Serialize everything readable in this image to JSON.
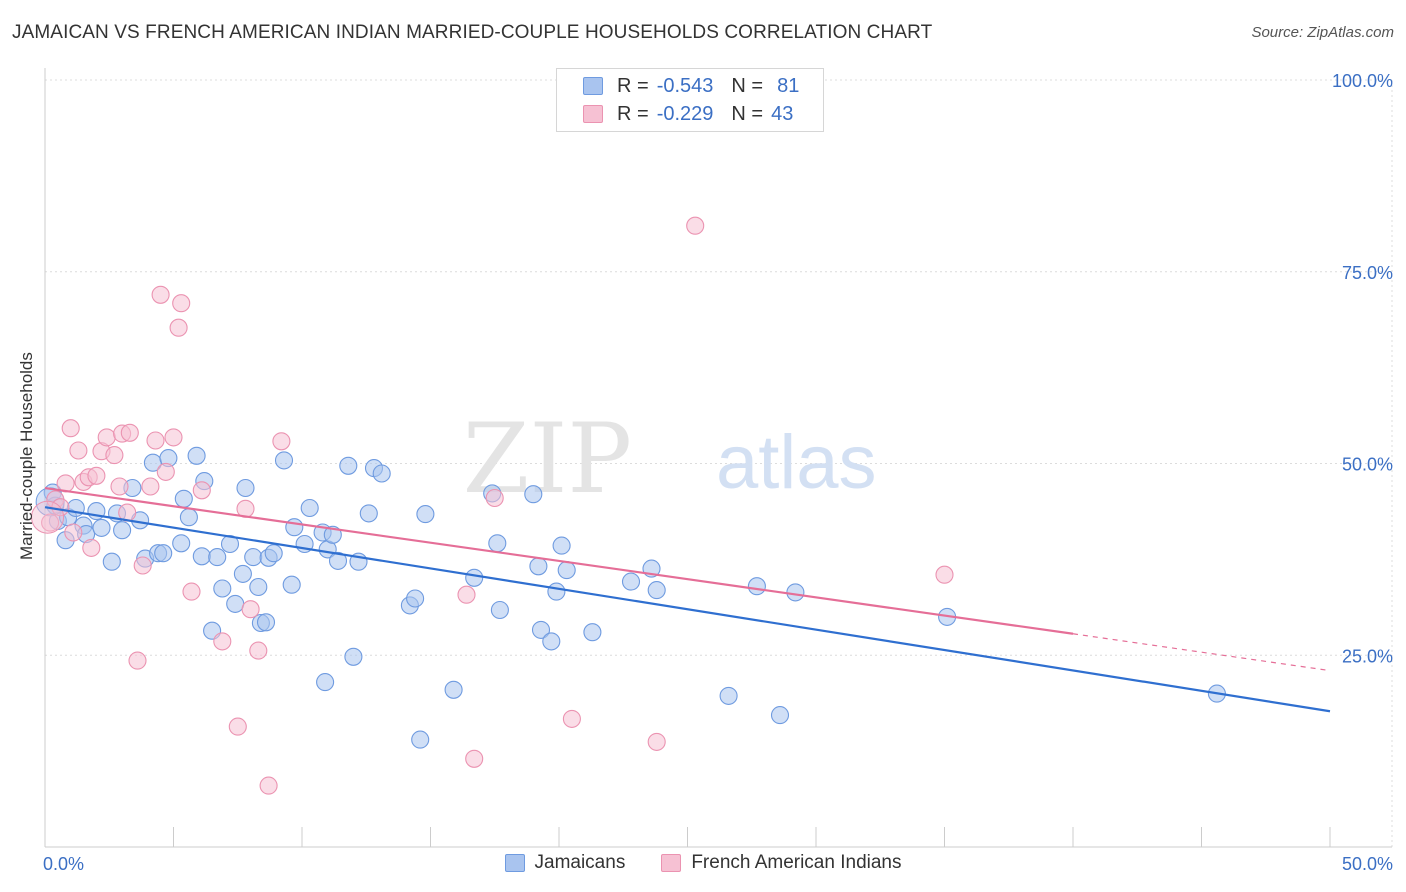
{
  "title": "JAMAICAN VS FRENCH AMERICAN INDIAN MARRIED-COUPLE HOUSEHOLDS CORRELATION CHART",
  "source": "Source: ZipAtlas.com",
  "watermark": {
    "zip": "ZIP",
    "atlas": "atlas"
  },
  "legend": {
    "r_label": "R =",
    "n_label": "N =",
    "rows": [
      {
        "r": "-0.543",
        "n": "81",
        "color": "#a9c4ef",
        "border": "#6f9be0"
      },
      {
        "r": "-0.229",
        "n": "43",
        "color": "#f6c1d3",
        "border": "#eb93b1"
      }
    ]
  },
  "chart_data": {
    "type": "scatter",
    "title": "JAMAICAN VS FRENCH AMERICAN INDIAN MARRIED-COUPLE HOUSEHOLDS CORRELATION CHART",
    "xlabel": "",
    "ylabel": "Married-couple Households",
    "xlim": [
      0,
      50
    ],
    "ylim": [
      0,
      102
    ],
    "x_tick_labels": [
      "0.0%",
      "50.0%"
    ],
    "y_tick_labels": [
      "25.0%",
      "50.0%",
      "75.0%",
      "100.0%"
    ],
    "y_ticks": [
      25,
      50,
      75,
      100
    ],
    "grid": true,
    "legend_position": "bottom",
    "series": [
      {
        "name": "Jamaicans",
        "color": "#a9c4ef",
        "line_color": "#2f6fd0",
        "r": -0.543,
        "n": 81,
        "trend": {
          "x0": 0,
          "y0": 44.3,
          "x1": 50,
          "y1": 17.7
        },
        "points": [
          [
            0.3,
            46.2
          ],
          [
            0.4,
            44.5
          ],
          [
            0.5,
            42.5
          ],
          [
            0.8,
            40.0
          ],
          [
            0.9,
            43.0
          ],
          [
            1.2,
            44.2
          ],
          [
            1.5,
            41.9
          ],
          [
            1.6,
            40.8
          ],
          [
            2.0,
            43.8
          ],
          [
            2.2,
            41.6
          ],
          [
            2.6,
            37.2
          ],
          [
            2.8,
            43.5
          ],
          [
            3.0,
            41.3
          ],
          [
            3.4,
            46.8
          ],
          [
            3.7,
            42.6
          ],
          [
            3.9,
            37.6
          ],
          [
            4.2,
            50.1
          ],
          [
            4.4,
            38.3
          ],
          [
            4.6,
            38.3
          ],
          [
            4.8,
            50.7
          ],
          [
            5.3,
            39.6
          ],
          [
            5.4,
            45.4
          ],
          [
            5.6,
            43.0
          ],
          [
            5.9,
            51.0
          ],
          [
            6.1,
            37.9
          ],
          [
            6.2,
            47.7
          ],
          [
            6.5,
            28.2
          ],
          [
            6.7,
            37.8
          ],
          [
            6.9,
            33.7
          ],
          [
            7.2,
            39.5
          ],
          [
            7.4,
            31.7
          ],
          [
            7.7,
            35.6
          ],
          [
            7.8,
            46.8
          ],
          [
            8.1,
            37.8
          ],
          [
            8.4,
            29.2
          ],
          [
            8.6,
            29.3
          ],
          [
            8.7,
            37.7
          ],
          [
            8.9,
            38.3
          ],
          [
            9.3,
            50.4
          ],
          [
            9.6,
            34.2
          ],
          [
            9.7,
            41.7
          ],
          [
            10.1,
            39.5
          ],
          [
            10.3,
            44.2
          ],
          [
            10.8,
            41.0
          ],
          [
            11.0,
            38.8
          ],
          [
            11.2,
            40.7
          ],
          [
            11.4,
            37.3
          ],
          [
            11.8,
            49.7
          ],
          [
            12.2,
            37.2
          ],
          [
            12.6,
            43.5
          ],
          [
            12.8,
            49.4
          ],
          [
            13.1,
            48.7
          ],
          [
            14.2,
            31.5
          ],
          [
            14.4,
            32.4
          ],
          [
            14.6,
            14.0
          ],
          [
            14.8,
            43.4
          ],
          [
            15.9,
            20.5
          ],
          [
            16.7,
            35.1
          ],
          [
            17.4,
            46.1
          ],
          [
            17.6,
            39.6
          ],
          [
            17.7,
            30.9
          ],
          [
            19.0,
            46.0
          ],
          [
            19.2,
            36.6
          ],
          [
            19.3,
            28.3
          ],
          [
            19.7,
            26.8
          ],
          [
            19.9,
            33.3
          ],
          [
            20.1,
            39.3
          ],
          [
            20.3,
            36.1
          ],
          [
            21.3,
            28.0
          ],
          [
            22.8,
            34.6
          ],
          [
            23.6,
            36.3
          ],
          [
            23.8,
            33.5
          ],
          [
            26.6,
            19.7
          ],
          [
            27.7,
            34.0
          ],
          [
            28.6,
            17.2
          ],
          [
            29.2,
            33.2
          ],
          [
            35.1,
            30.0
          ],
          [
            45.6,
            20.0
          ],
          [
            8.3,
            33.9
          ],
          [
            12.0,
            24.8
          ],
          [
            10.9,
            21.5
          ]
        ]
      },
      {
        "name": "French American Indians",
        "color": "#f6c1d3",
        "line_color": "#e56e97",
        "r": -0.229,
        "n": 43,
        "trend": {
          "x0": 0,
          "y0": 46.8,
          "x1": 40,
          "y1": 27.8,
          "dash_x1": 50,
          "dash_y1": 23.0
        },
        "points": [
          [
            0.2,
            42.3
          ],
          [
            0.4,
            45.3
          ],
          [
            0.6,
            44.3
          ],
          [
            0.8,
            47.4
          ],
          [
            1.0,
            54.6
          ],
          [
            1.1,
            41.0
          ],
          [
            1.3,
            51.7
          ],
          [
            1.5,
            47.6
          ],
          [
            1.7,
            48.2
          ],
          [
            1.8,
            39.0
          ],
          [
            2.0,
            48.4
          ],
          [
            2.2,
            51.6
          ],
          [
            2.4,
            53.4
          ],
          [
            2.7,
            51.1
          ],
          [
            2.9,
            47.0
          ],
          [
            3.0,
            53.9
          ],
          [
            3.2,
            43.6
          ],
          [
            3.3,
            54.0
          ],
          [
            3.6,
            24.3
          ],
          [
            3.8,
            36.7
          ],
          [
            4.1,
            47.0
          ],
          [
            4.3,
            53.0
          ],
          [
            4.5,
            72.0
          ],
          [
            4.7,
            48.9
          ],
          [
            5.0,
            53.4
          ],
          [
            5.2,
            67.7
          ],
          [
            5.3,
            70.9
          ],
          [
            5.7,
            33.3
          ],
          [
            6.1,
            46.5
          ],
          [
            6.9,
            26.8
          ],
          [
            7.5,
            15.7
          ],
          [
            7.8,
            44.1
          ],
          [
            8.0,
            31.0
          ],
          [
            8.3,
            25.6
          ],
          [
            8.7,
            8.0
          ],
          [
            9.2,
            52.9
          ],
          [
            16.4,
            32.9
          ],
          [
            16.7,
            11.5
          ],
          [
            17.5,
            45.5
          ],
          [
            20.5,
            16.7
          ],
          [
            23.8,
            13.7
          ],
          [
            25.3,
            81.0
          ],
          [
            35.0,
            35.5
          ]
        ]
      }
    ]
  }
}
